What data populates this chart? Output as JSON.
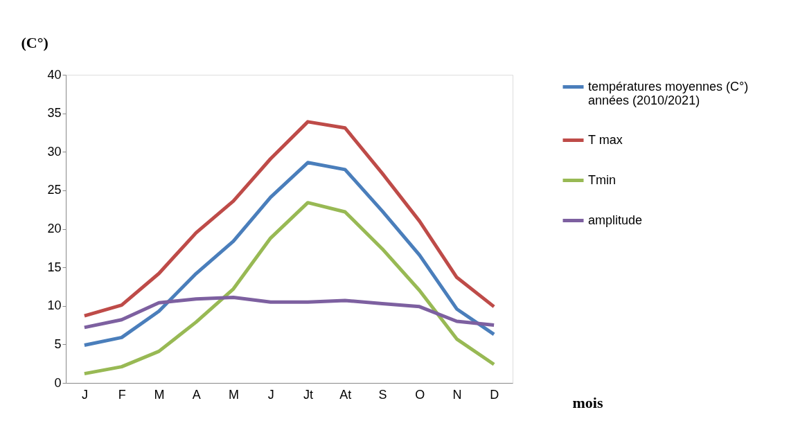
{
  "chart_data": {
    "type": "line",
    "ylabel": "(C°)",
    "xlabel": "mois",
    "categories": [
      "J",
      "F",
      "M",
      "A",
      "M",
      "J",
      "Jt",
      "At",
      "S",
      "O",
      "N",
      "D"
    ],
    "series": [
      {
        "name": "températures moyennes (C°)\nannées (2010/2021)",
        "color": "#4a7ebb",
        "values": [
          4.9,
          5.9,
          9.3,
          14.2,
          18.4,
          24.1,
          28.6,
          27.7,
          22.3,
          16.6,
          9.6,
          6.3
        ]
      },
      {
        "name": "T max",
        "color": "#be4b48",
        "values": [
          8.7,
          10.1,
          14.2,
          19.5,
          23.6,
          29.1,
          33.9,
          33.1,
          27.2,
          21.0,
          13.7,
          9.9
        ]
      },
      {
        "name": "Tmin",
        "color": "#98b954",
        "values": [
          1.2,
          2.1,
          4.1,
          7.9,
          12.2,
          18.8,
          23.4,
          22.2,
          17.4,
          12.0,
          5.7,
          2.4
        ]
      },
      {
        "name": "amplitude",
        "color": "#7d60a0",
        "values": [
          7.2,
          8.2,
          10.4,
          10.9,
          11.1,
          10.5,
          10.5,
          10.7,
          10.3,
          9.9,
          8.0,
          7.5
        ]
      }
    ],
    "ylim": [
      0,
      40
    ],
    "yticks": [
      0,
      5,
      10,
      15,
      20,
      25,
      30,
      35,
      40
    ],
    "grid": false,
    "legend": "top right",
    "marker": "none",
    "line_style": "solid"
  }
}
